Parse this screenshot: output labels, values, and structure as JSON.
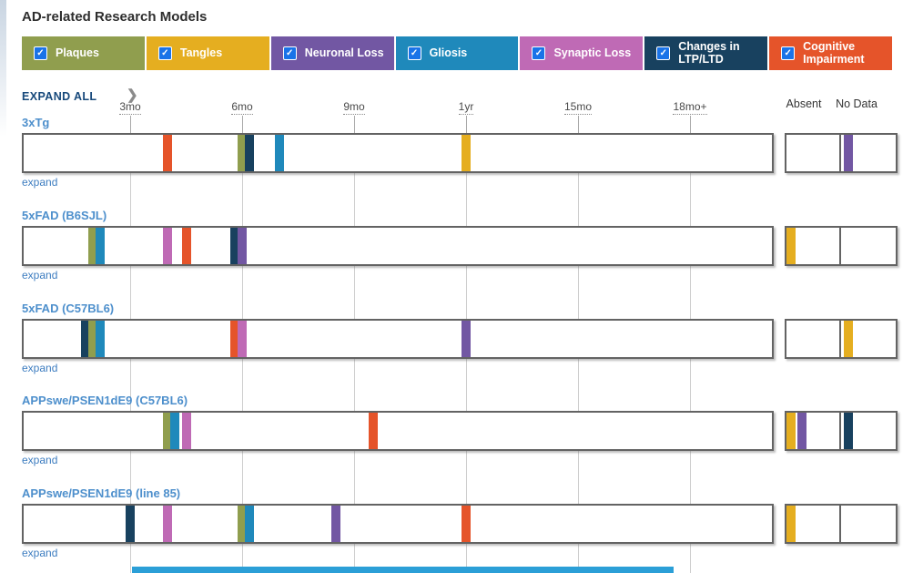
{
  "page": {
    "title": "AD-related Research Models"
  },
  "colors": {
    "plaques": "#909E4E",
    "tangles": "#E5AE20",
    "neuronal_loss": "#7257A3",
    "gliosis": "#1F89BB",
    "synaptic_loss": "#BF6AB5",
    "ltp_ltd": "#18415F",
    "cognitive_impairment": "#E5542A",
    "checkbox_blue": "#1A73E8",
    "bottom_bar": "#2B9FD7"
  },
  "controls": {
    "expand_all_label": "EXPAND ALL",
    "chevron_icon": "❯",
    "check_icon": "✓",
    "expand_row_label": "expand"
  },
  "legend": [
    {
      "key": "plaques",
      "label": "Plaques",
      "checked": true
    },
    {
      "key": "tangles",
      "label": "Tangles",
      "checked": true
    },
    {
      "key": "neuronal_loss",
      "label": "Neuronal Loss",
      "checked": true
    },
    {
      "key": "gliosis",
      "label": "Gliosis",
      "checked": true
    },
    {
      "key": "synaptic_loss",
      "label": "Synaptic Loss",
      "checked": true
    },
    {
      "key": "ltp_ltd",
      "label": "Changes in LTP/LTD",
      "checked": true
    },
    {
      "key": "cognitive_impairment",
      "label": "Cognitive Impairment",
      "checked": true
    }
  ],
  "axis": {
    "ticks": [
      {
        "label": "3mo",
        "mo": 3
      },
      {
        "label": "6mo",
        "mo": 6
      },
      {
        "label": "9mo",
        "mo": 9
      },
      {
        "label": "1yr",
        "mo": 12
      },
      {
        "label": "15mo",
        "mo": 15
      },
      {
        "label": "18mo+",
        "mo": 18
      }
    ],
    "absent_label": "Absent",
    "no_data_label": "No Data"
  },
  "models": [
    {
      "name": "3xTg",
      "marks": [
        {
          "phenotype": "cognitive_impairment",
          "mo": 4.0
        },
        {
          "phenotype": "plaques",
          "mo": 6.0
        },
        {
          "phenotype": "ltp_ltd",
          "mo": 6.2
        },
        {
          "phenotype": "gliosis",
          "mo": 7.0
        },
        {
          "phenotype": "tangles",
          "mo": 12.0
        }
      ],
      "absent": [],
      "no_data": [
        "neuronal_loss"
      ]
    },
    {
      "name": "5xFAD (B6SJL)",
      "marks": [
        {
          "phenotype": "plaques",
          "mo": 2.0
        },
        {
          "phenotype": "gliosis",
          "mo": 2.2
        },
        {
          "phenotype": "synaptic_loss",
          "mo": 4.0
        },
        {
          "phenotype": "cognitive_impairment",
          "mo": 4.5
        },
        {
          "phenotype": "ltp_ltd",
          "mo": 5.8
        },
        {
          "phenotype": "neuronal_loss",
          "mo": 6.0
        }
      ],
      "absent": [
        "tangles"
      ],
      "no_data": []
    },
    {
      "name": "5xFAD (C57BL6)",
      "marks": [
        {
          "phenotype": "ltp_ltd",
          "mo": 1.8
        },
        {
          "phenotype": "plaques",
          "mo": 2.0
        },
        {
          "phenotype": "gliosis",
          "mo": 2.2
        },
        {
          "phenotype": "cognitive_impairment",
          "mo": 5.8
        },
        {
          "phenotype": "synaptic_loss",
          "mo": 6.0
        },
        {
          "phenotype": "neuronal_loss",
          "mo": 12.0
        }
      ],
      "absent": [],
      "no_data": [
        "tangles"
      ]
    },
    {
      "name": "APPswe/PSEN1dE9 (C57BL6)",
      "marks": [
        {
          "phenotype": "plaques",
          "mo": 4.0
        },
        {
          "phenotype": "gliosis",
          "mo": 4.2
        },
        {
          "phenotype": "synaptic_loss",
          "mo": 4.5
        },
        {
          "phenotype": "cognitive_impairment",
          "mo": 9.5
        }
      ],
      "absent": [
        "tangles",
        "neuronal_loss"
      ],
      "no_data": [
        "ltp_ltd"
      ]
    },
    {
      "name": "APPswe/PSEN1dE9 (line 85)",
      "marks": [
        {
          "phenotype": "ltp_ltd",
          "mo": 3.0
        },
        {
          "phenotype": "synaptic_loss",
          "mo": 4.0
        },
        {
          "phenotype": "plaques",
          "mo": 6.0
        },
        {
          "phenotype": "gliosis",
          "mo": 6.2
        },
        {
          "phenotype": "neuronal_loss",
          "mo": 8.5
        },
        {
          "phenotype": "cognitive_impairment",
          "mo": 12.0
        }
      ],
      "absent": [
        "tangles"
      ],
      "no_data": []
    }
  ]
}
